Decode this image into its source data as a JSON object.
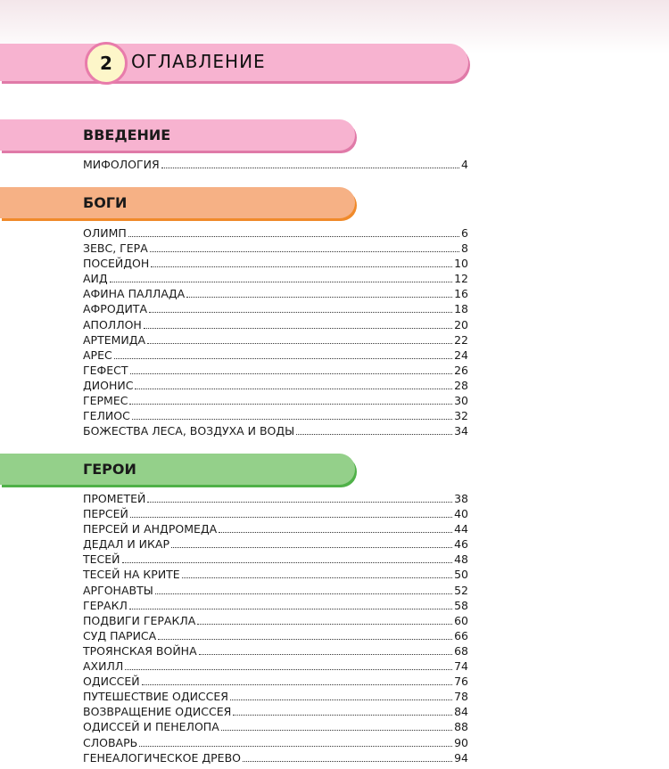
{
  "header": {
    "number": "2",
    "title": "ОГЛАВЛЕНИЕ"
  },
  "sections": [
    {
      "title": "ВВЕДЕНИЕ",
      "color": "#f7b3d0",
      "entries": [
        {
          "label": "МИФОЛОГИЯ",
          "page": "4"
        }
      ]
    },
    {
      "title": "БОГИ",
      "color": "#f6b185",
      "entries": [
        {
          "label": "ОЛИМП",
          "page": "6"
        },
        {
          "label": "ЗЕВС, ГЕРА",
          "page": "8"
        },
        {
          "label": "ПОСЕЙДОН",
          "page": "10"
        },
        {
          "label": "АИД",
          "page": "12"
        },
        {
          "label": "АФИНА ПАЛЛАДА",
          "page": "16"
        },
        {
          "label": "АФРОДИТА",
          "page": "18"
        },
        {
          "label": "АПОЛЛОН",
          "page": "20"
        },
        {
          "label": "АРТЕМИДА",
          "page": "22"
        },
        {
          "label": "АРЕС",
          "page": "24"
        },
        {
          "label": "ГЕФЕСТ",
          "page": "26"
        },
        {
          "label": "ДИОНИС",
          "page": "28"
        },
        {
          "label": "ГЕРМЕС",
          "page": "30"
        },
        {
          "label": "ГЕЛИОС",
          "page": "32"
        },
        {
          "label": "БОЖЕСТВА ЛЕСА, ВОЗДУХА И ВОДЫ",
          "page": "34"
        }
      ]
    },
    {
      "title": "ГЕРОИ",
      "color": "#94d08a",
      "entries": [
        {
          "label": "ПРОМЕТЕЙ",
          "page": "38"
        },
        {
          "label": "ПЕРСЕЙ",
          "page": "40"
        },
        {
          "label": "ПЕРСЕЙ И АНДРОМЕДА",
          "page": "44"
        },
        {
          "label": "ДЕДАЛ И ИКАР",
          "page": "46"
        },
        {
          "label": "ТЕСЕЙ",
          "page": "48"
        },
        {
          "label": "ТЕСЕЙ НА КРИТЕ",
          "page": "50"
        },
        {
          "label": "АРГОНАВТЫ",
          "page": "52"
        },
        {
          "label": "ГЕРАКЛ",
          "page": "58"
        },
        {
          "label": "ПОДВИГИ ГЕРАКЛА",
          "page": "60"
        },
        {
          "label": "СУД ПАРИСА",
          "page": "66"
        },
        {
          "label": "ТРОЯНСКАЯ ВОЙНА",
          "page": "68"
        },
        {
          "label": "АХИЛЛ",
          "page": "74"
        },
        {
          "label": "ОДИССЕЙ",
          "page": "76"
        },
        {
          "label": "ПУТЕШЕСТВИЕ ОДИССЕЯ",
          "page": "78"
        },
        {
          "label": "ВОЗВРАЩЕНИЕ ОДИССЕЯ",
          "page": "84"
        },
        {
          "label": "ОДИССЕЙ И ПЕНЕЛОПА",
          "page": "88"
        },
        {
          "label": "СЛОВАРЬ",
          "page": "90"
        },
        {
          "label": "ГЕНЕАЛОГИЧЕСКОЕ ДРЕВО",
          "page": "94"
        }
      ]
    }
  ]
}
